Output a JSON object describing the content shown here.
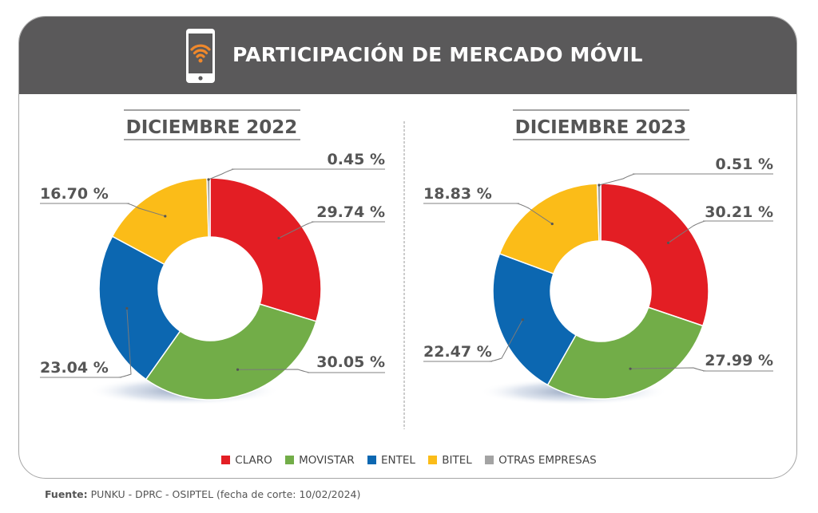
{
  "header": {
    "title": "PARTICIPACIÓN DE MERCADO MÓVIL",
    "icon": "smartphone-wifi-icon",
    "background_color": "#5a595a",
    "icon_accent_color": "#f0892c"
  },
  "chart_data": [
    {
      "type": "pie",
      "variant": "donut",
      "title": "DICIEMBRE 2022",
      "categories": [
        "CLARO",
        "MOVISTAR",
        "ENTEL",
        "BITEL",
        "OTRAS EMPRESAS"
      ],
      "values": [
        29.74,
        30.05,
        23.04,
        16.7,
        0.45
      ],
      "labels": [
        "29.74 %",
        "30.05 %",
        "23.04 %",
        "16.70 %",
        "0.45 %"
      ],
      "unit": "%"
    },
    {
      "type": "pie",
      "variant": "donut",
      "title": "DICIEMBRE 2023",
      "categories": [
        "CLARO",
        "MOVISTAR",
        "ENTEL",
        "BITEL",
        "OTRAS EMPRESAS"
      ],
      "values": [
        30.21,
        27.99,
        22.47,
        18.83,
        0.51
      ],
      "labels": [
        "30.21 %",
        "27.99 %",
        "22.47 %",
        "18.83 %",
        "0.51 %"
      ],
      "unit": "%"
    }
  ],
  "series_colors": {
    "CLARO": "#e31e24",
    "MOVISTAR": "#72ad48",
    "ENTEL": "#0c67b1",
    "BITEL": "#fbbc18",
    "OTRAS EMPRESAS": "#a3a3a3"
  },
  "legend": {
    "position": "bottom-center",
    "items": [
      {
        "label": "CLARO",
        "color": "#e31e24"
      },
      {
        "label": "MOVISTAR",
        "color": "#72ad48"
      },
      {
        "label": "ENTEL",
        "color": "#0c67b1"
      },
      {
        "label": "BITEL",
        "color": "#fbbc18"
      },
      {
        "label": "OTRAS EMPRESAS",
        "color": "#a3a3a3"
      }
    ]
  },
  "source": {
    "prefix": "Fuente:",
    "text": " PUNKU - DPRC - OSIPTEL (fecha de corte: 10/02/2024)"
  }
}
